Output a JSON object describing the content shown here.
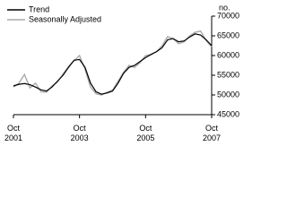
{
  "chart_data": {
    "type": "line",
    "unit_label": "no.",
    "x": [
      "2001-10",
      "2001-12",
      "2002-02",
      "2002-04",
      "2002-06",
      "2002-08",
      "2002-10",
      "2002-12",
      "2003-02",
      "2003-04",
      "2003-06",
      "2003-08",
      "2003-10",
      "2003-12",
      "2004-02",
      "2004-04",
      "2004-06",
      "2004-08",
      "2004-10",
      "2004-12",
      "2005-02",
      "2005-04",
      "2005-06",
      "2005-08",
      "2005-10",
      "2005-12",
      "2006-02",
      "2006-04",
      "2006-06",
      "2006-08",
      "2006-10",
      "2006-12",
      "2007-02",
      "2007-04",
      "2007-06",
      "2007-08",
      "2007-10"
    ],
    "series": [
      {
        "name": "Trend",
        "color": "#000000",
        "values": [
          52300,
          52700,
          52900,
          52600,
          52000,
          51300,
          51000,
          52000,
          53500,
          55000,
          57000,
          58800,
          59000,
          57000,
          53000,
          50800,
          50200,
          50500,
          51000,
          53000,
          55500,
          57000,
          57500,
          58500,
          59500,
          60300,
          61000,
          62000,
          64000,
          64300,
          63500,
          63700,
          64700,
          65500,
          65200,
          64000,
          62500
        ]
      },
      {
        "name": "Seasonally Adjusted",
        "color": "#aaaaaa",
        "values": [
          52000,
          53000,
          55200,
          51800,
          53000,
          50800,
          50700,
          52300,
          53300,
          55300,
          57200,
          58700,
          60000,
          56500,
          52000,
          50300,
          50000,
          50700,
          51200,
          53500,
          55800,
          57500,
          57000,
          58200,
          60000,
          60200,
          61000,
          62500,
          64800,
          64300,
          63000,
          63500,
          65000,
          65900,
          66200,
          63800,
          62200
        ]
      }
    ],
    "xlim": [
      "2001-10",
      "2007-10"
    ],
    "xticks": [
      {
        "value": "2001-10",
        "label": "Oct\n2001"
      },
      {
        "value": "2003-10",
        "label": "Oct\n2003"
      },
      {
        "value": "2005-10",
        "label": "Oct\n2005"
      },
      {
        "value": "2007-10",
        "label": "Oct\n2007"
      }
    ],
    "ylim": [
      45000,
      70000
    ],
    "yticks": [
      45000,
      50000,
      55000,
      60000,
      65000,
      70000
    ],
    "legend": "top-left"
  }
}
